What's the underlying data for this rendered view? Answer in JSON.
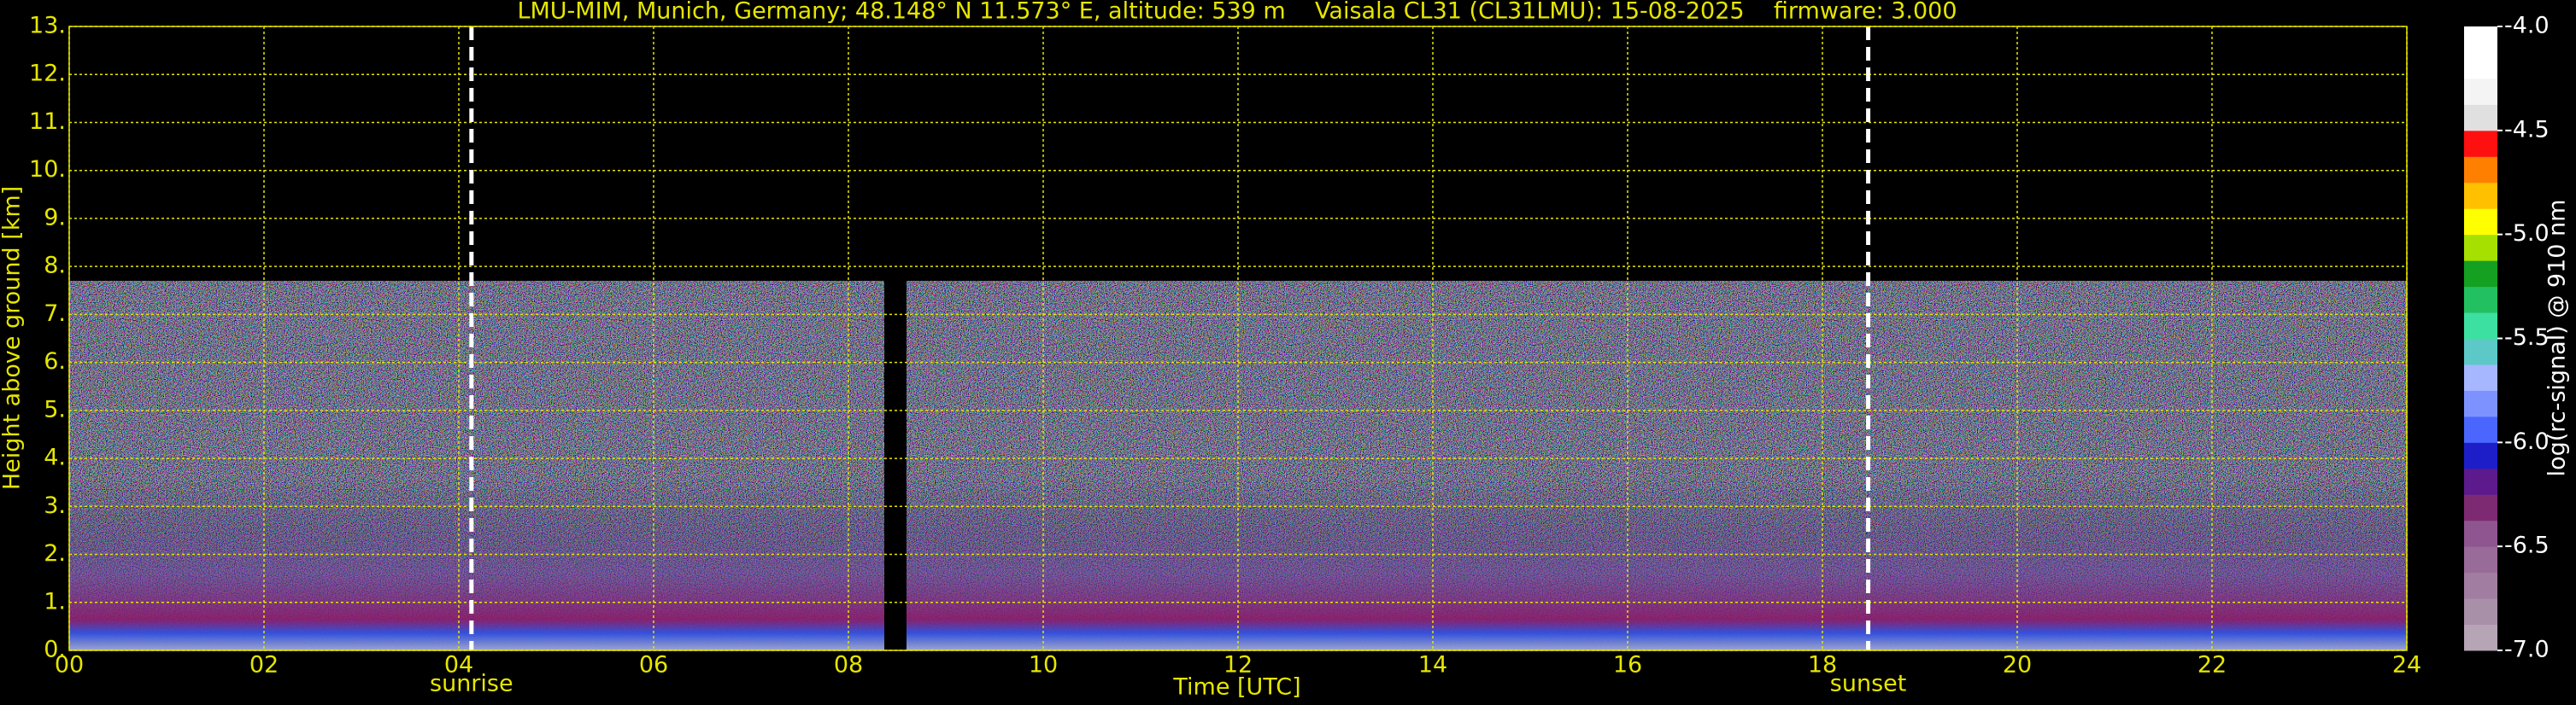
{
  "chart_data": {
    "type": "heatmap",
    "title": "LMU-MIM, Munich, Germany; 48.148° N 11.573° E, altitude: 539 m    Vaisala CL31 (CL31LMU): 15-08-2025    firmware: 3.000",
    "xlabel": "Time [UTC]",
    "ylabel": "Height above ground [km]",
    "xlim": [
      0,
      24
    ],
    "xticks": [
      {
        "value": 0,
        "label": "00"
      },
      {
        "value": 2,
        "label": "02"
      },
      {
        "value": 4,
        "label": "04"
      },
      {
        "value": 6,
        "label": "06"
      },
      {
        "value": 8,
        "label": "08"
      },
      10,
      12,
      14,
      16,
      18,
      20,
      22,
      24
    ],
    "ylim": [
      0,
      13
    ],
    "yticks": [
      {
        "value": 0,
        "label": "0."
      },
      {
        "value": 1,
        "label": "1."
      },
      {
        "value": 2,
        "label": "2."
      },
      {
        "value": 3,
        "label": "3."
      },
      {
        "value": 4,
        "label": "4."
      },
      {
        "value": 5,
        "label": "5."
      },
      {
        "value": 6,
        "label": "6."
      },
      {
        "value": 7,
        "label": "7."
      },
      {
        "value": 8,
        "label": "8."
      },
      {
        "value": 9,
        "label": "9."
      },
      {
        "value": 10,
        "label": "10."
      },
      {
        "value": 11,
        "label": "11."
      },
      {
        "value": 12,
        "label": "12."
      },
      {
        "value": 13,
        "label": "13."
      }
    ],
    "grid": true,
    "grid_color": "#e6e600",
    "annotations": [
      {
        "x": 4.13,
        "label": "sunrise"
      },
      {
        "x": 18.47,
        "label": "sunset"
      }
    ],
    "colorbar": {
      "label": "log(rc-signal) @ 910 nm",
      "lim": [
        -7,
        -4
      ],
      "ticks": [
        {
          "value": -4,
          "label": "-4.0"
        },
        {
          "value": -4.5,
          "label": "-4.5"
        },
        {
          "value": -5,
          "label": "-5.0"
        },
        {
          "value": -5.5,
          "label": "-5.5"
        },
        {
          "value": -6,
          "label": "-6.0"
        },
        {
          "value": -6.5,
          "label": "-6.5"
        },
        {
          "value": -7,
          "label": "-7.0"
        }
      ],
      "colors": [
        "#b5a5b5",
        "#a990a9",
        "#a17ea1",
        "#996b99",
        "#8f5590",
        "#7e2a72",
        "#5c1a8c",
        "#1e1ec8",
        "#4a66ff",
        "#7d92ff",
        "#a6b6ff",
        "#5cc8c8",
        "#3ce0a0",
        "#22c060",
        "#14a020",
        "#a6e000",
        "#ffff00",
        "#ffc000",
        "#ff8000",
        "#ff1010",
        "#e0e0e0",
        "#f4f4f4",
        "#ffffff",
        "#ffffff"
      ]
    }
  }
}
